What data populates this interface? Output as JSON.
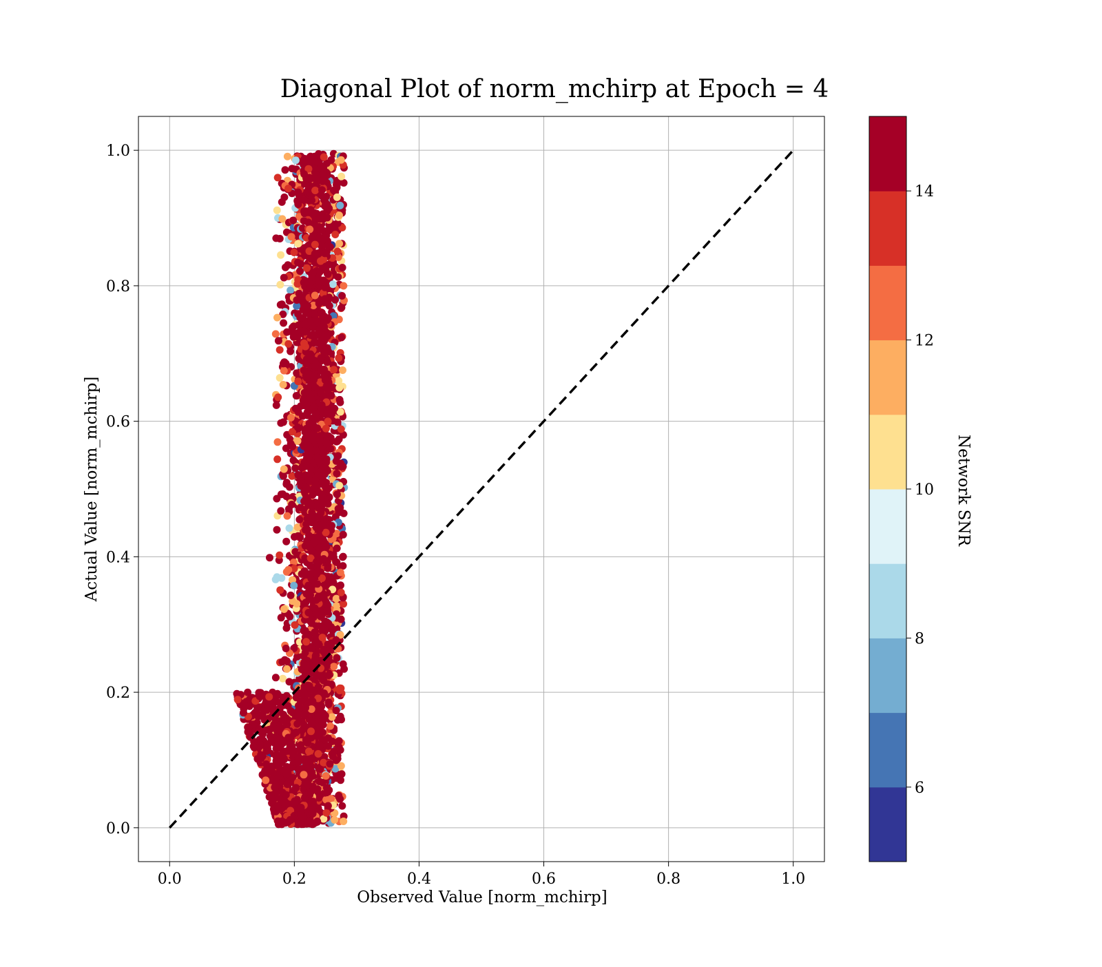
{
  "chart_data": {
    "type": "scatter",
    "title": "Diagonal Plot of norm_mchirp at Epoch = 4",
    "xlabel": "Observed Value [norm_mchirp]",
    "ylabel": "Actual Value [norm_mchirp]",
    "xlim": [
      -0.05,
      1.05
    ],
    "ylim": [
      -0.05,
      1.05
    ],
    "x_ticks": [
      0.0,
      0.2,
      0.4,
      0.6,
      0.8,
      1.0
    ],
    "y_ticks": [
      0.0,
      0.2,
      0.4,
      0.6,
      0.8,
      1.0
    ],
    "x_tick_labels": [
      "0.0",
      "0.2",
      "0.4",
      "0.6",
      "0.8",
      "1.0"
    ],
    "y_tick_labels": [
      "0.0",
      "0.2",
      "0.4",
      "0.6",
      "0.8",
      "1.0"
    ],
    "grid": true,
    "reference_line": {
      "style": "dashed",
      "color": "#000000",
      "from": [
        0.0,
        0.0
      ],
      "to": [
        1.0,
        1.0
      ]
    },
    "colorbar": {
      "label": "Network SNR",
      "range": [
        5,
        15
      ],
      "ticks": [
        6,
        8,
        10,
        12,
        14
      ],
      "tick_labels": [
        "6",
        "8",
        "10",
        "12",
        "14"
      ],
      "colors": [
        "#313695",
        "#4575b4",
        "#74add1",
        "#abd9e9",
        "#e0f3f8",
        "#fee090",
        "#fdae61",
        "#f46d43",
        "#d73027",
        "#a50026"
      ]
    },
    "point_cloud": {
      "main_band": {
        "x_center": 0.235,
        "x_spread": 0.022,
        "y_range": [
          0.0,
          1.0
        ]
      },
      "lower_tail": {
        "x_range": [
          0.1,
          0.23
        ],
        "y_range": [
          0.005,
          0.2
        ]
      },
      "dominant_snr": 15,
      "approx_points": 2600
    }
  }
}
